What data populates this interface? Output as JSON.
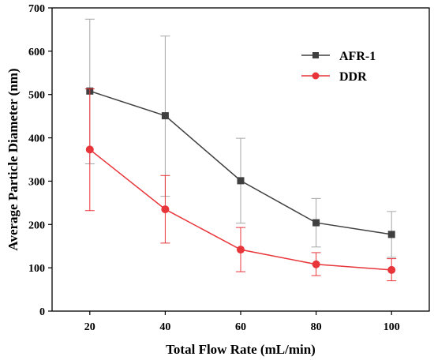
{
  "chart_data": {
    "type": "line",
    "title": "",
    "xlabel": "Total Flow Rate (mL/min)",
    "ylabel": "Average Particle Diameter (nm)",
    "xlim": [
      10,
      110
    ],
    "ylim": [
      0,
      700
    ],
    "xticks": [
      20,
      40,
      60,
      80,
      100
    ],
    "yticks": [
      0,
      100,
      200,
      300,
      400,
      500,
      600,
      700
    ],
    "x": [
      20,
      40,
      60,
      80,
      100
    ],
    "legend_position": "top-right",
    "grid": false,
    "series": [
      {
        "name": "AFR-1",
        "color": "#404040",
        "marker": "square",
        "values": [
          508,
          451,
          301,
          204,
          177
        ],
        "error_upper": [
          674,
          635,
          399,
          260,
          230
        ],
        "error_lower": [
          340,
          265,
          203,
          148,
          124
        ]
      },
      {
        "name": "DDR",
        "color": "#e8353a",
        "marker": "circle",
        "values": [
          373,
          235,
          142,
          108,
          95
        ],
        "error_upper": [
          513,
          313,
          193,
          135,
          121
        ],
        "error_lower": [
          232,
          157,
          91,
          82,
          70
        ]
      }
    ]
  }
}
